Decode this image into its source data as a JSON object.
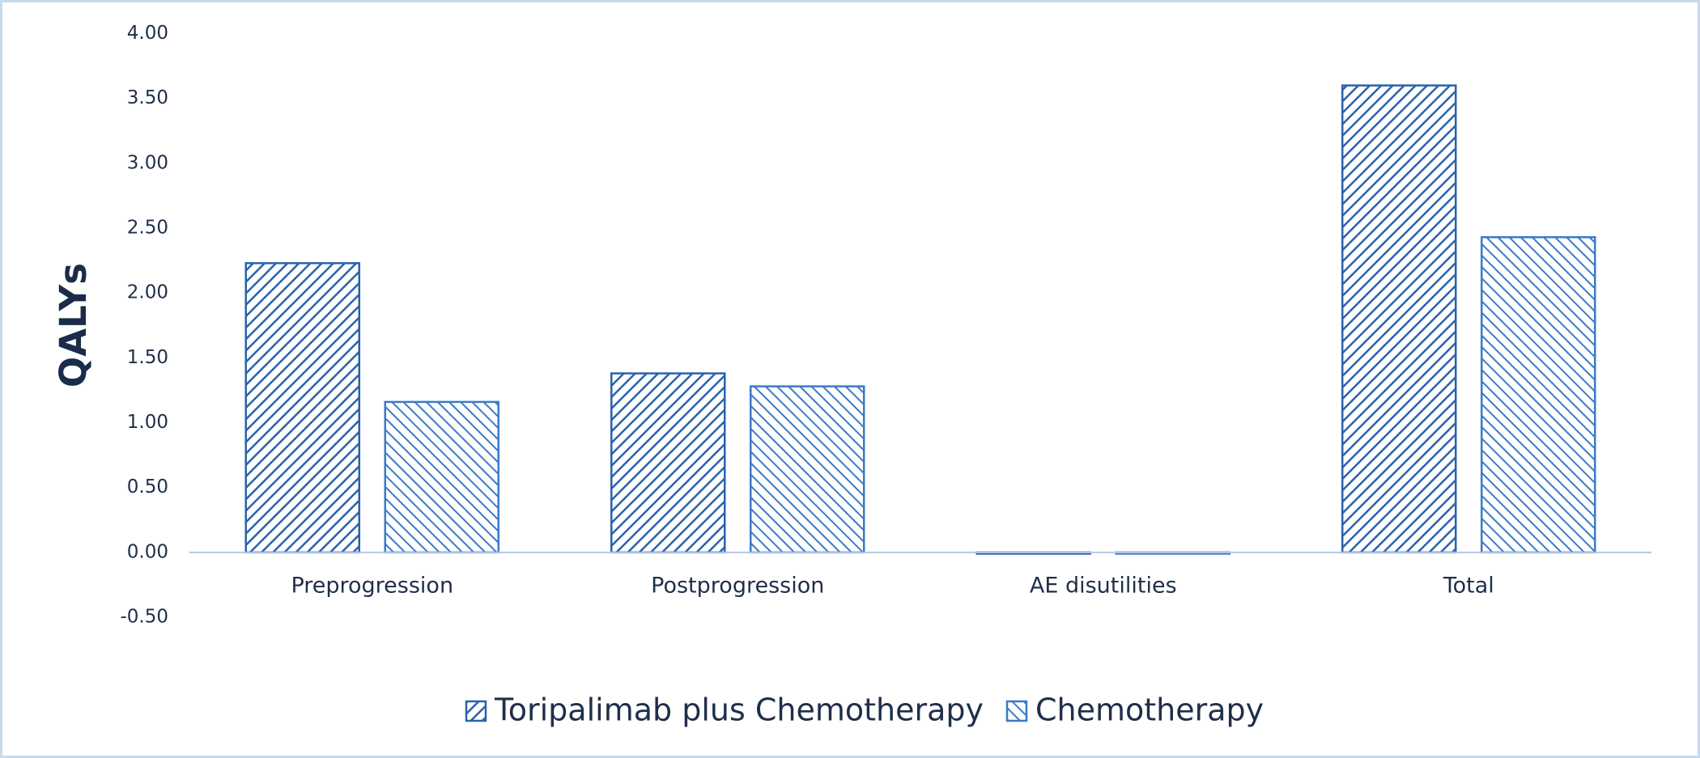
{
  "chart_data": {
    "type": "bar",
    "y_label": "QALYs",
    "categories": [
      "Preprogression",
      "Postprogression",
      "AE disutilities",
      "Total"
    ],
    "series": [
      {
        "name": "Toripalimab plus Chemotherapy",
        "color": "#2a62ad",
        "hatch": "/",
        "values": [
          2.23,
          1.38,
          -0.01,
          3.6
        ]
      },
      {
        "name": "Chemotherapy",
        "color": "#3a7bc8",
        "hatch": "\\",
        "values": [
          1.16,
          1.28,
          -0.01,
          2.43
        ]
      }
    ],
    "ylim": [
      -0.5,
      4
    ],
    "yticks": [
      {
        "value": -0.5,
        "label": "-0.50"
      },
      {
        "value": 0,
        "label": "0.00"
      },
      {
        "value": 0.5,
        "label": "0.50"
      },
      {
        "value": 1,
        "label": "1.00"
      },
      {
        "value": 1.5,
        "label": "1.50"
      },
      {
        "value": 2,
        "label": "2.00"
      },
      {
        "value": 2.5,
        "label": "2.50"
      },
      {
        "value": 3,
        "label": "3.00"
      },
      {
        "value": 3.5,
        "label": "3.50"
      },
      {
        "value": 4,
        "label": "4.00"
      }
    ],
    "grid": false,
    "legend": "bottom"
  }
}
